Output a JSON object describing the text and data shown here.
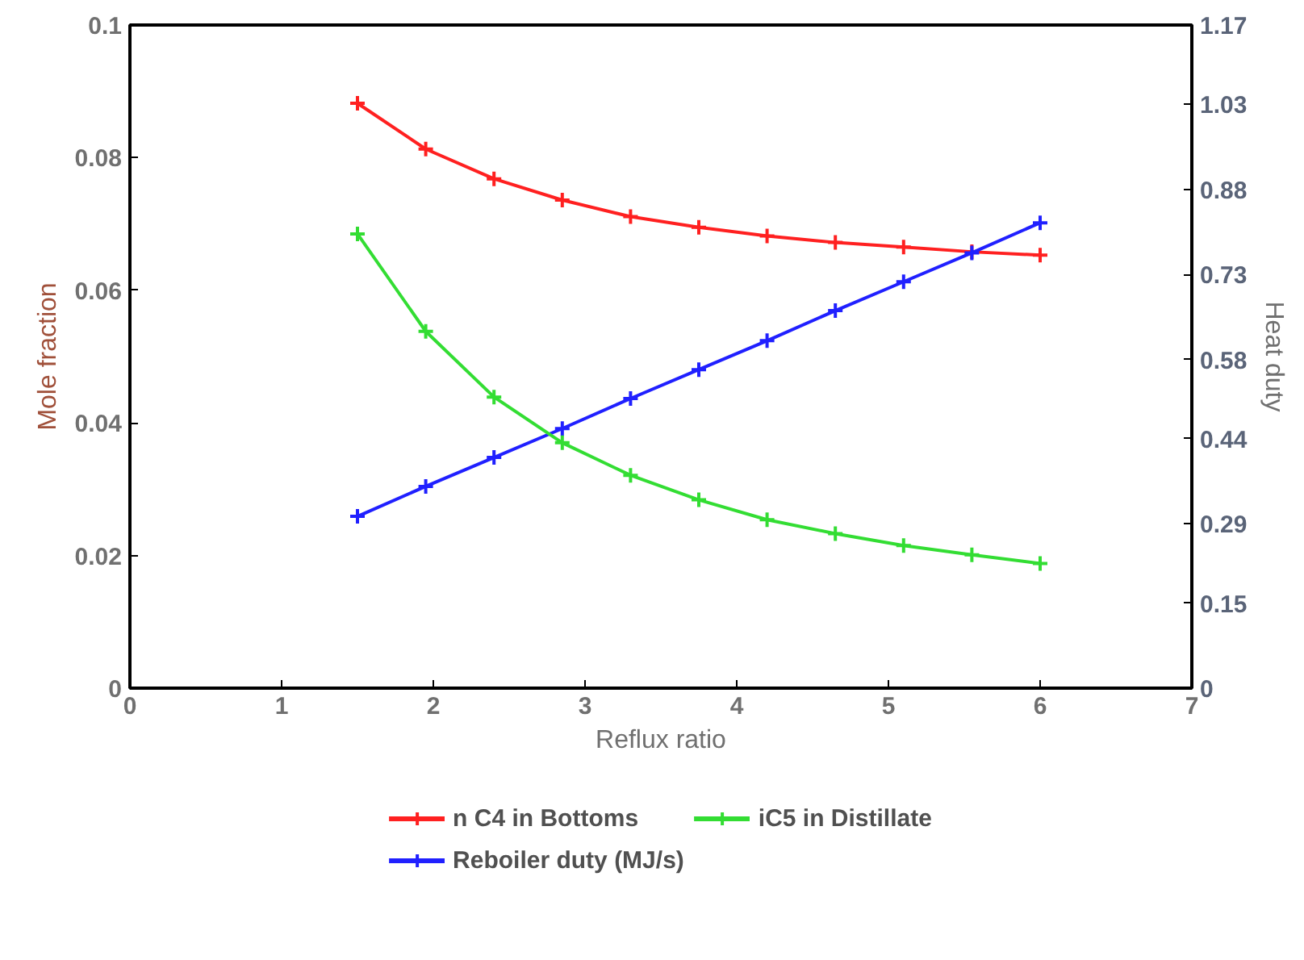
{
  "chart_data": {
    "type": "line",
    "xlabel": "Reflux ratio",
    "ylabel": "Mole fraction",
    "y2label": "Heat duty",
    "x": [
      1.5,
      1.95,
      2.4,
      2.85,
      3.3,
      3.75,
      4.2,
      4.65,
      5.1,
      5.55,
      6.0
    ],
    "xlim": [
      0,
      7
    ],
    "xticks": [
      0,
      1,
      2,
      3,
      4,
      5,
      6,
      7
    ],
    "ylim": [
      0,
      0.1
    ],
    "yticks": [
      0,
      0.02,
      0.04,
      0.06,
      0.08,
      0.1
    ],
    "y2lim": [
      0,
      1.17
    ],
    "y2ticks": [
      0,
      0.15,
      0.29,
      0.44,
      0.58,
      0.73,
      0.88,
      1.03,
      1.17
    ],
    "series": [
      {
        "name": "n C4 in Bottoms",
        "color": "#ff2020",
        "marker": "cross",
        "values": [
          0.0882,
          0.0813,
          0.0768,
          0.0736,
          0.0711,
          0.0695,
          0.0682,
          0.0672,
          0.0665,
          0.0658,
          0.0653
        ]
      },
      {
        "name": "Reboiler duty (MJ/s)",
        "color": "#2020ff",
        "marker": "cross",
        "axis": "y2",
        "values": [
          0.303,
          0.356,
          0.407,
          0.458,
          0.511,
          0.562,
          0.613,
          0.666,
          0.717,
          0.768,
          0.821
        ]
      },
      {
        "name": "iC5 in Distillate",
        "color": "#33dd33",
        "marker": "cross",
        "values": [
          0.0685,
          0.0538,
          0.0439,
          0.037,
          0.0321,
          0.0284,
          0.0254,
          0.0233,
          0.0215,
          0.0201,
          0.0188
        ]
      }
    ],
    "grid": false,
    "legend": "bottom"
  }
}
